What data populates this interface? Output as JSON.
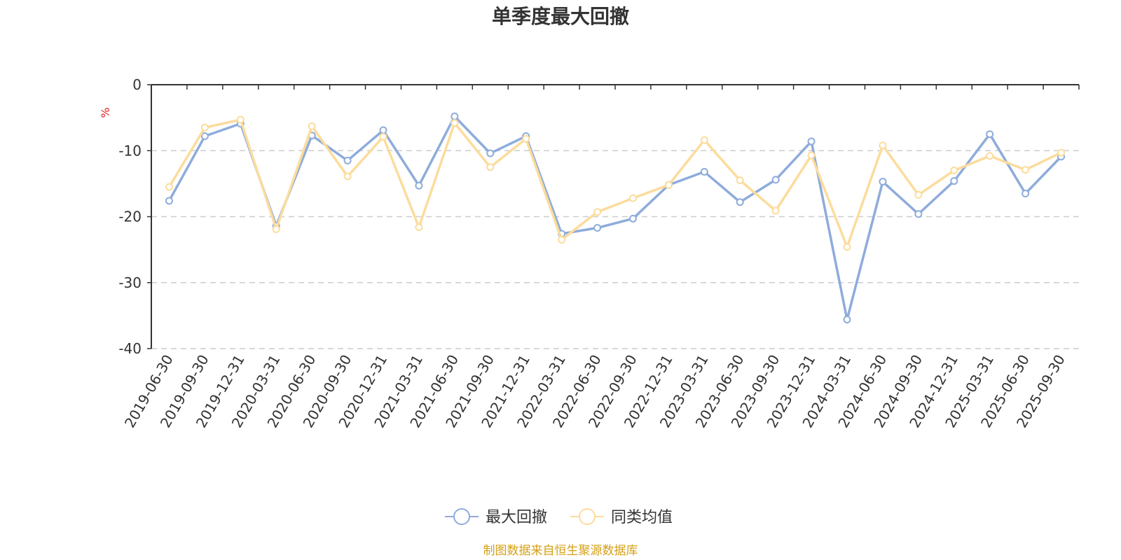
{
  "chart_data": {
    "type": "line",
    "title": "单季度最大回撤",
    "ylabel": "%",
    "ylim": [
      -40,
      0
    ],
    "yticks": [
      0,
      -10,
      -20,
      -30,
      -40
    ],
    "grid": true,
    "legend_position": "bottom-center",
    "categories": [
      "2019-06-30",
      "2019-09-30",
      "2019-12-31",
      "2020-03-31",
      "2020-06-30",
      "2020-09-30",
      "2020-12-31",
      "2021-03-31",
      "2021-06-30",
      "2021-09-30",
      "2021-12-31",
      "2022-03-31",
      "2022-06-30",
      "2022-09-30",
      "2022-12-31",
      "2023-03-31",
      "2023-06-30",
      "2023-09-30",
      "2023-12-31",
      "2024-03-31",
      "2024-06-30",
      "2024-09-30",
      "2024-12-31",
      "2025-03-31",
      "2025-06-30",
      "2025-09-30"
    ],
    "series": [
      {
        "name": "最大回撤",
        "color": "#8eacdb",
        "values": [
          -17.6,
          -7.8,
          -5.9,
          -21.4,
          -7.7,
          -11.5,
          -6.9,
          -15.3,
          -4.8,
          -10.4,
          -7.8,
          -22.6,
          -21.7,
          -20.3,
          -15.2,
          -13.2,
          -17.8,
          -14.4,
          -8.6,
          -35.6,
          -14.7,
          -19.6,
          -14.6,
          -7.5,
          -16.5,
          -10.9
        ]
      },
      {
        "name": "同类均值",
        "color": "#fcdc9c",
        "values": [
          -15.5,
          -6.5,
          -5.3,
          -21.9,
          -6.3,
          -13.9,
          -7.9,
          -21.6,
          -5.8,
          -12.5,
          -8.2,
          -23.5,
          -19.3,
          -17.2,
          -15.2,
          -8.4,
          -14.5,
          -19.1,
          -10.7,
          -24.6,
          -9.2,
          -16.7,
          -13.0,
          -10.8,
          -12.9,
          -10.3
        ]
      }
    ],
    "source_note": "制图数据来自恒生聚源数据库",
    "source_color": "#d4a017",
    "unit_color": "#e02020"
  }
}
